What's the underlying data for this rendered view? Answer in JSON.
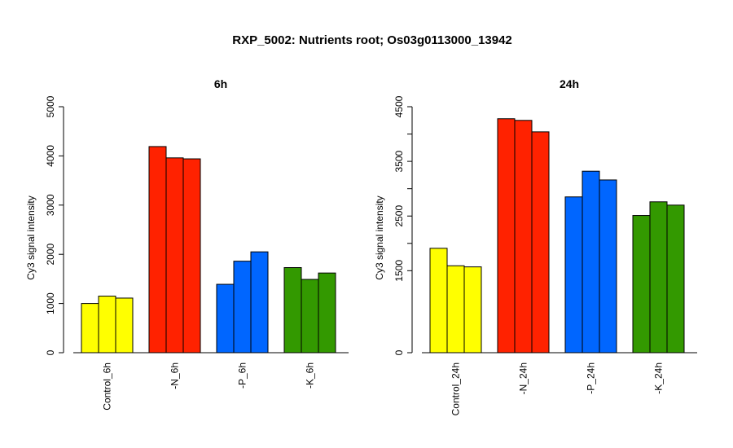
{
  "main_title": "RXP_5002: Nutrients root; Os03g0113000_13942",
  "chart_data": [
    {
      "type": "bar",
      "title": "6h",
      "ylabel": "Cy3 signal intensity",
      "xlabel": "",
      "ylim": [
        0,
        5000
      ],
      "yticks": [
        0,
        1000,
        2000,
        3000,
        4000,
        5000
      ],
      "ytick_labels": [
        "0",
        "1000",
        "2000",
        "3000",
        "4000",
        "5000"
      ],
      "grid": false,
      "groups": [
        {
          "label": "Control_6h",
          "color": "#ffff00",
          "values": [
            1000,
            1150,
            1110
          ]
        },
        {
          "label": "-N_6h",
          "color": "#ff2200",
          "values": [
            4190,
            3960,
            3940
          ]
        },
        {
          "label": "-P_6h",
          "color": "#0066ff",
          "values": [
            1390,
            1860,
            2050
          ]
        },
        {
          "label": "-K_6h",
          "color": "#339900",
          "values": [
            1730,
            1490,
            1620
          ]
        }
      ]
    },
    {
      "type": "bar",
      "title": "24h",
      "ylabel": "Cy3 signal intensity",
      "xlabel": "",
      "ylim": [
        0,
        4500
      ],
      "yticks": [
        0,
        1500,
        2500,
        3500,
        4500
      ],
      "ytick_labels": [
        "0",
        "1500",
        "2500",
        "3500",
        "4500"
      ],
      "minor_yticks": [
        2000,
        3000,
        4000
      ],
      "grid": false,
      "groups": [
        {
          "label": "Control_24h",
          "color": "#ffff00",
          "values": [
            1910,
            1590,
            1570
          ]
        },
        {
          "label": "-N_24h",
          "color": "#ff2200",
          "values": [
            4280,
            4250,
            4040
          ]
        },
        {
          "label": "-P_24h",
          "color": "#0066ff",
          "values": [
            2850,
            3320,
            3160
          ]
        },
        {
          "label": "-K_24h",
          "color": "#339900",
          "values": [
            2510,
            2760,
            2700
          ]
        }
      ]
    }
  ]
}
